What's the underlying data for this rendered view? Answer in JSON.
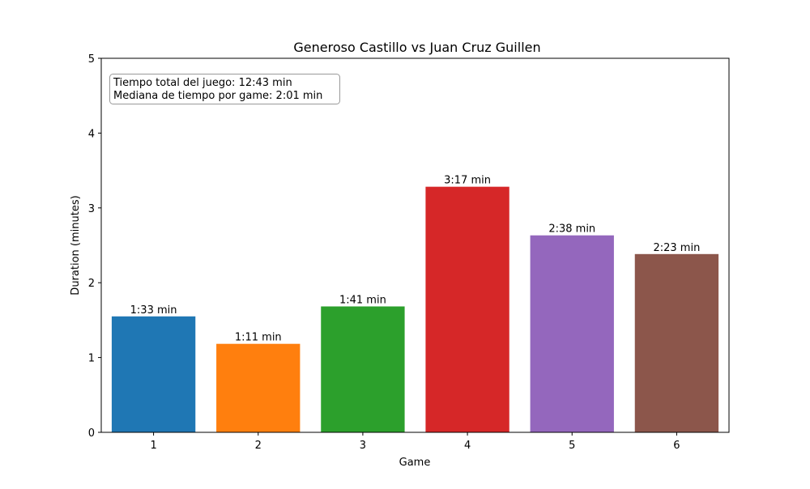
{
  "chart_data": {
    "type": "bar",
    "title": "Generoso Castillo vs  Juan Cruz Guillen",
    "xlabel": "Game",
    "ylabel": "Duration (minutes)",
    "categories": [
      "1",
      "2",
      "3",
      "4",
      "5",
      "6"
    ],
    "values": [
      1.55,
      1.183,
      1.683,
      3.283,
      2.633,
      2.383
    ],
    "data_labels": [
      "1:33 min",
      "1:11 min",
      "1:41 min",
      "3:17 min",
      "2:38 min",
      "2:23 min"
    ],
    "colors": [
      "#1f77b4",
      "#ff7f0e",
      "#2ca02c",
      "#d62728",
      "#9467bd",
      "#8c564b"
    ],
    "ylim": [
      0,
      5
    ],
    "yticks": [
      0,
      1,
      2,
      3,
      4,
      5
    ],
    "grid": false,
    "annotation": {
      "lines": [
        "Tiempo total del juego: 12:43 min",
        "Mediana de tiempo por game: 2:01 min"
      ],
      "placement": "top-left"
    }
  }
}
